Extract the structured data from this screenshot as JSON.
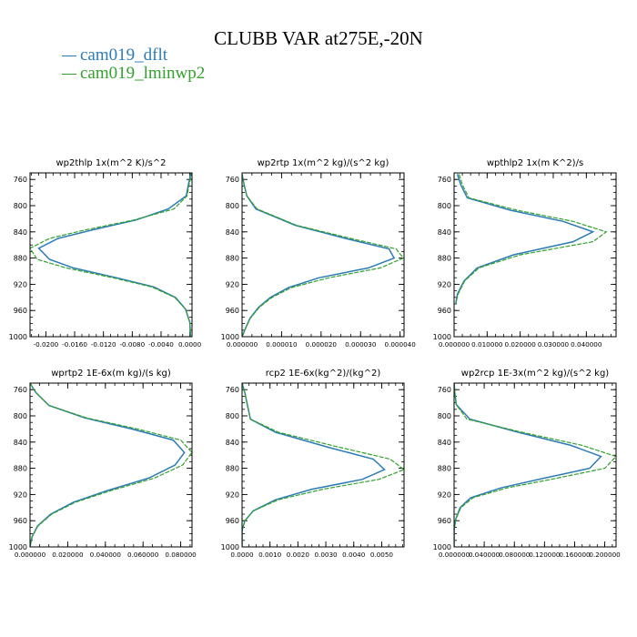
{
  "title": "CLUBB VAR at275E,-20N",
  "legend": [
    {
      "label": "cam019_dflt",
      "color": "#2c7bb6"
    },
    {
      "label": "cam019_lminwp2",
      "color": "#33a02c"
    }
  ],
  "chart_data": [
    {
      "type": "line",
      "title": "wp2thlp   1x(m^2 K)/s^2",
      "ylim": [
        1000,
        750
      ],
      "yticks": [
        760,
        800,
        840,
        880,
        920,
        960,
        1000
      ],
      "xlim": [
        -0.0222,
        0.0003
      ],
      "xticks": [
        -0.02,
        -0.016,
        -0.012,
        -0.008,
        -0.004,
        0.0
      ],
      "xticklabels": [
        "-0.0200",
        "-0.0160",
        "-0.0120",
        "-0.0080",
        "-0.0040",
        "0.0000"
      ],
      "series": [
        {
          "name": "cam019_dflt",
          "points": [
            [
              0.0002,
              748
            ],
            [
              -0.0002,
              768
            ],
            [
              -0.0005,
              785
            ],
            [
              -0.003,
              805
            ],
            [
              -0.0075,
              822
            ],
            [
              -0.0135,
              837
            ],
            [
              -0.0183,
              850
            ],
            [
              -0.021,
              865
            ],
            [
              -0.0195,
              882
            ],
            [
              -0.0162,
              895
            ],
            [
              -0.0102,
              910
            ],
            [
              -0.005,
              924
            ],
            [
              -0.002,
              940
            ],
            [
              -0.0006,
              958
            ],
            [
              0.0,
              978
            ],
            [
              0.0001,
              1000
            ]
          ]
        },
        {
          "name": "cam019_lminwp2",
          "points": [
            [
              0.0003,
              748
            ],
            [
              -0.0001,
              768
            ],
            [
              -0.0004,
              785
            ],
            [
              -0.0022,
              805
            ],
            [
              -0.0078,
              822
            ],
            [
              -0.0145,
              837
            ],
            [
              -0.0195,
              850
            ],
            [
              -0.0222,
              865
            ],
            [
              -0.0212,
              882
            ],
            [
              -0.0172,
              895
            ],
            [
              -0.0107,
              910
            ],
            [
              -0.0053,
              924
            ],
            [
              -0.0021,
              940
            ],
            [
              -0.0006,
              958
            ],
            [
              0.0,
              978
            ],
            [
              0.0001,
              1000
            ]
          ]
        }
      ]
    },
    {
      "type": "line",
      "title": "wp2rtp   1x(m^2 kg)/(s^2 kg)",
      "ylim": [
        1000,
        750
      ],
      "yticks": [
        760,
        800,
        840,
        880,
        920,
        960,
        1000
      ],
      "xlim": [
        0.0,
        4.1e-05
      ],
      "xticks": [
        0.0,
        1e-05,
        2e-05,
        3e-05,
        4e-05
      ],
      "xticklabels": [
        "0.000000",
        "0.000010",
        "0.000020",
        "0.000030",
        "0.000040"
      ],
      "series": [
        {
          "name": "cam019_dflt",
          "points": [
            [
              0.0,
              752
            ],
            [
              5e-07,
              768
            ],
            [
              1.2e-06,
              785
            ],
            [
              3.5e-06,
              805
            ],
            [
              1.35e-05,
              830
            ],
            [
              2.62e-05,
              850
            ],
            [
              3.72e-05,
              866
            ],
            [
              3.85e-05,
              880
            ],
            [
              3.2e-05,
              895
            ],
            [
              1.95e-05,
              910
            ],
            [
              1.18e-05,
              925
            ],
            [
              7.2e-06,
              940
            ],
            [
              4.2e-06,
              955
            ],
            [
              2e-06,
              972
            ],
            [
              8e-07,
              988
            ],
            [
              0.0,
              1000
            ]
          ]
        },
        {
          "name": "cam019_lminwp2",
          "points": [
            [
              0.0,
              752
            ],
            [
              5e-07,
              768
            ],
            [
              1.2e-06,
              785
            ],
            [
              3.8e-06,
              805
            ],
            [
              1.38e-05,
              830
            ],
            [
              2.75e-05,
              850
            ],
            [
              3.9e-05,
              866
            ],
            [
              4.08e-05,
              880
            ],
            [
              3.5e-05,
              895
            ],
            [
              2.2e-05,
              910
            ],
            [
              1.25e-05,
              925
            ],
            [
              7.6e-06,
              940
            ],
            [
              4.4e-06,
              955
            ],
            [
              2.1e-06,
              972
            ],
            [
              8e-07,
              988
            ],
            [
              0.0,
              1000
            ]
          ]
        }
      ]
    },
    {
      "type": "line",
      "title": "wpthlp2   1x(m K^2)/s",
      "ylim": [
        1000,
        750
      ],
      "yticks": [
        760,
        800,
        840,
        880,
        920,
        960,
        1000
      ],
      "xlim": [
        0.0,
        0.049
      ],
      "xticks": [
        0.0,
        0.01,
        0.02,
        0.03,
        0.04
      ],
      "xticklabels": [
        "0.000000",
        "0.010000",
        "0.020000",
        "0.030000",
        "0.040000"
      ],
      "series": [
        {
          "name": "cam019_dflt",
          "points": [
            [
              0.001,
              752
            ],
            [
              0.002,
              768
            ],
            [
              0.004,
              788
            ],
            [
              0.017,
              807
            ],
            [
              0.033,
              824
            ],
            [
              0.042,
              840
            ],
            [
              0.036,
              855
            ],
            [
              0.018,
              875
            ],
            [
              0.007,
              895
            ],
            [
              0.003,
              915
            ],
            [
              0.001,
              935
            ],
            [
              0.0005,
              950
            ]
          ]
        },
        {
          "name": "cam019_lminwp2",
          "points": [
            [
              0.0015,
              752
            ],
            [
              0.0025,
              768
            ],
            [
              0.0045,
              788
            ],
            [
              0.019,
              807
            ],
            [
              0.036,
              824
            ],
            [
              0.046,
              840
            ],
            [
              0.042,
              855
            ],
            [
              0.02,
              875
            ],
            [
              0.0075,
              895
            ],
            [
              0.0032,
              915
            ],
            [
              0.0012,
              935
            ],
            [
              0.0005,
              950
            ]
          ]
        }
      ]
    },
    {
      "type": "line",
      "title": "wprtp2   1E-6x(m kg)/(s kg)",
      "ylim": [
        1000,
        750
      ],
      "yticks": [
        760,
        800,
        840,
        880,
        920,
        960,
        1000
      ],
      "xlim": [
        0.0,
        0.086
      ],
      "xticks": [
        0.0,
        0.02,
        0.04,
        0.06,
        0.08
      ],
      "xticklabels": [
        "0.000000",
        "0.020000",
        "0.040000",
        "0.060000",
        "0.080000"
      ],
      "series": [
        {
          "name": "cam019_dflt",
          "points": [
            [
              0.0,
              750
            ],
            [
              0.003,
              764
            ],
            [
              0.01,
              784
            ],
            [
              0.029,
              803
            ],
            [
              0.054,
              820
            ],
            [
              0.076,
              837
            ],
            [
              0.082,
              856
            ],
            [
              0.077,
              875
            ],
            [
              0.063,
              895
            ],
            [
              0.041,
              914
            ],
            [
              0.023,
              932
            ],
            [
              0.011,
              950
            ],
            [
              0.004,
              968
            ],
            [
              0.001,
              985
            ],
            [
              0.0,
              1000
            ]
          ]
        },
        {
          "name": "cam019_lminwp2",
          "points": [
            [
              0.0,
              750
            ],
            [
              0.003,
              764
            ],
            [
              0.01,
              784
            ],
            [
              0.03,
              803
            ],
            [
              0.057,
              820
            ],
            [
              0.08,
              837
            ],
            [
              0.086,
              856
            ],
            [
              0.081,
              875
            ],
            [
              0.066,
              895
            ],
            [
              0.043,
              914
            ],
            [
              0.024,
              932
            ],
            [
              0.0115,
              950
            ],
            [
              0.0042,
              968
            ],
            [
              0.001,
              985
            ],
            [
              0.0,
              1000
            ]
          ]
        }
      ]
    },
    {
      "type": "line",
      "title": "rcp2   1E-6x(kg^2)/(kg^2)",
      "ylim": [
        1000,
        750
      ],
      "yticks": [
        760,
        800,
        840,
        880,
        920,
        960,
        1000
      ],
      "xlim": [
        0.0,
        0.0058
      ],
      "xticks": [
        0.0,
        0.001,
        0.002,
        0.003,
        0.004,
        0.005
      ],
      "xticklabels": [
        "0.0000",
        "0.0010",
        "0.0020",
        "0.0030",
        "0.0040",
        "0.0050"
      ],
      "series": [
        {
          "name": "cam019_dflt",
          "points": [
            [
              0.0,
              750
            ],
            [
              0.0001,
              765
            ],
            [
              0.0002,
              785
            ],
            [
              0.0003,
              805
            ],
            [
              0.0012,
              825
            ],
            [
              0.0031,
              848
            ],
            [
              0.0047,
              866
            ],
            [
              0.0051,
              882
            ],
            [
              0.0043,
              897
            ],
            [
              0.0025,
              912
            ],
            [
              0.0012,
              928
            ],
            [
              0.0004,
              945
            ],
            [
              0.0001,
              960
            ],
            [
              0.0,
              975
            ],
            [
              0.0,
              1000
            ]
          ]
        },
        {
          "name": "cam019_lminwp2",
          "points": [
            [
              0.0,
              750
            ],
            [
              0.0001,
              765
            ],
            [
              0.0002,
              785
            ],
            [
              0.0003,
              805
            ],
            [
              0.0013,
              825
            ],
            [
              0.0035,
              848
            ],
            [
              0.0053,
              866
            ],
            [
              0.0058,
              882
            ],
            [
              0.0049,
              897
            ],
            [
              0.0029,
              912
            ],
            [
              0.0013,
              928
            ],
            [
              0.0004,
              945
            ],
            [
              0.0001,
              960
            ],
            [
              0.0,
              975
            ],
            [
              0.0,
              1000
            ]
          ]
        }
      ]
    },
    {
      "type": "line",
      "title": "wp2rcp   1E-3x(m^2 kg)/(s^2 kg)",
      "ylim": [
        1000,
        750
      ],
      "yticks": [
        760,
        800,
        840,
        880,
        920,
        960,
        1000
      ],
      "xlim": [
        0.0,
        0.215
      ],
      "xticks": [
        0.0,
        0.04,
        0.08,
        0.12,
        0.16,
        0.2
      ],
      "xticklabels": [
        "0.000000",
        "0.040000",
        "0.080000",
        "0.120000",
        "0.160000",
        "0.200000"
      ],
      "series": [
        {
          "name": "cam019_dflt",
          "points": [
            [
              0.0,
              750
            ],
            [
              0.001,
              765
            ],
            [
              0.003,
              783
            ],
            [
              0.021,
              805
            ],
            [
              0.085,
              825
            ],
            [
              0.155,
              845
            ],
            [
              0.195,
              862
            ],
            [
              0.18,
              880
            ],
            [
              0.12,
              895
            ],
            [
              0.062,
              910
            ],
            [
              0.022,
              925
            ],
            [
              0.008,
              940
            ],
            [
              0.002,
              958
            ],
            [
              0.0,
              975
            ],
            [
              0.0,
              1000
            ]
          ]
        },
        {
          "name": "cam019_lminwp2",
          "points": [
            [
              0.0,
              750
            ],
            [
              0.001,
              765
            ],
            [
              0.003,
              783
            ],
            [
              0.017,
              805
            ],
            [
              0.09,
              825
            ],
            [
              0.17,
              845
            ],
            [
              0.215,
              862
            ],
            [
              0.2,
              880
            ],
            [
              0.137,
              895
            ],
            [
              0.07,
              910
            ],
            [
              0.025,
              925
            ],
            [
              0.009,
              940
            ],
            [
              0.002,
              958
            ],
            [
              0.0,
              975
            ],
            [
              0.0,
              1000
            ]
          ]
        }
      ]
    }
  ]
}
